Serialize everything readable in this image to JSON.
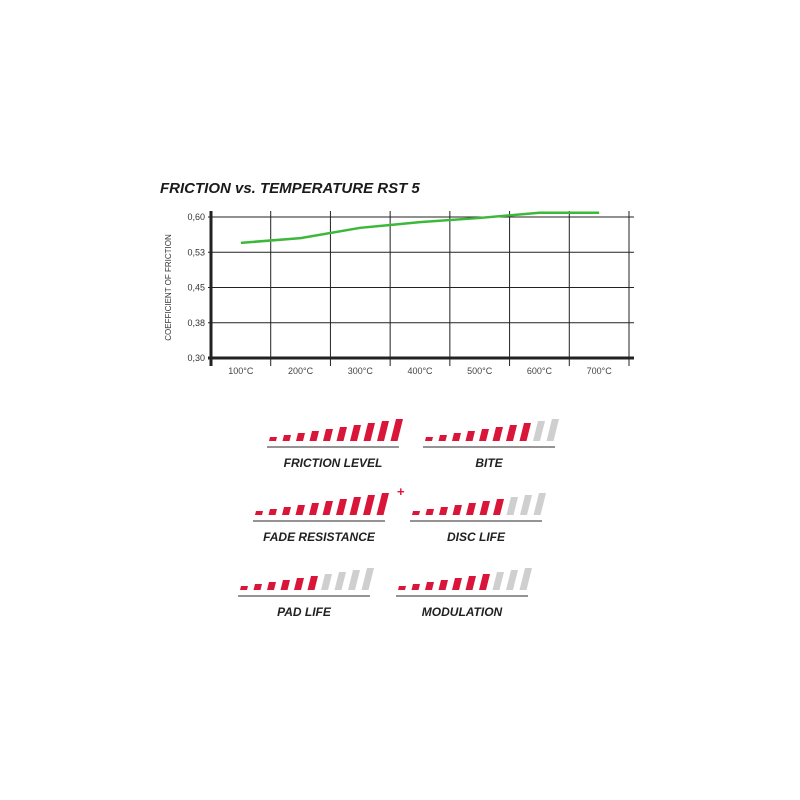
{
  "chart_data": {
    "type": "line",
    "title": "FRICTION vs. TEMPERATURE RST 5",
    "xlabel": "",
    "ylabel": "COEFFICIENT OF FRICTION",
    "categories": [
      "100°C",
      "200°C",
      "300°C",
      "400°C",
      "500°C",
      "600°C",
      "700°C"
    ],
    "y_ticks": [
      "0,30",
      "0,38",
      "0,45",
      "0,53",
      "0,60"
    ],
    "ylim": [
      0.3,
      0.6
    ],
    "grid": true,
    "series": [
      {
        "values": [
          0.545,
          0.555,
          0.577,
          0.589,
          0.598,
          0.609,
          0.609
        ],
        "color": "#3cb83a"
      }
    ]
  },
  "ratings": [
    {
      "label": "FRICTION LEVEL",
      "filled": 10,
      "total": 10
    },
    {
      "label": "BITE",
      "filled": 8,
      "total": 10
    },
    {
      "label": "FADE RESISTANCE",
      "filled": 10,
      "total": 10,
      "plus": "+"
    },
    {
      "label": "DISC LIFE",
      "filled": 7,
      "total": 10
    },
    {
      "label": "PAD LIFE",
      "filled": 6,
      "total": 10
    },
    {
      "label": "MODULATION",
      "filled": 7,
      "total": 10
    }
  ],
  "colors": {
    "filled": "#d9163a",
    "empty": "#cfcfcf",
    "line": "#3cb83a"
  }
}
